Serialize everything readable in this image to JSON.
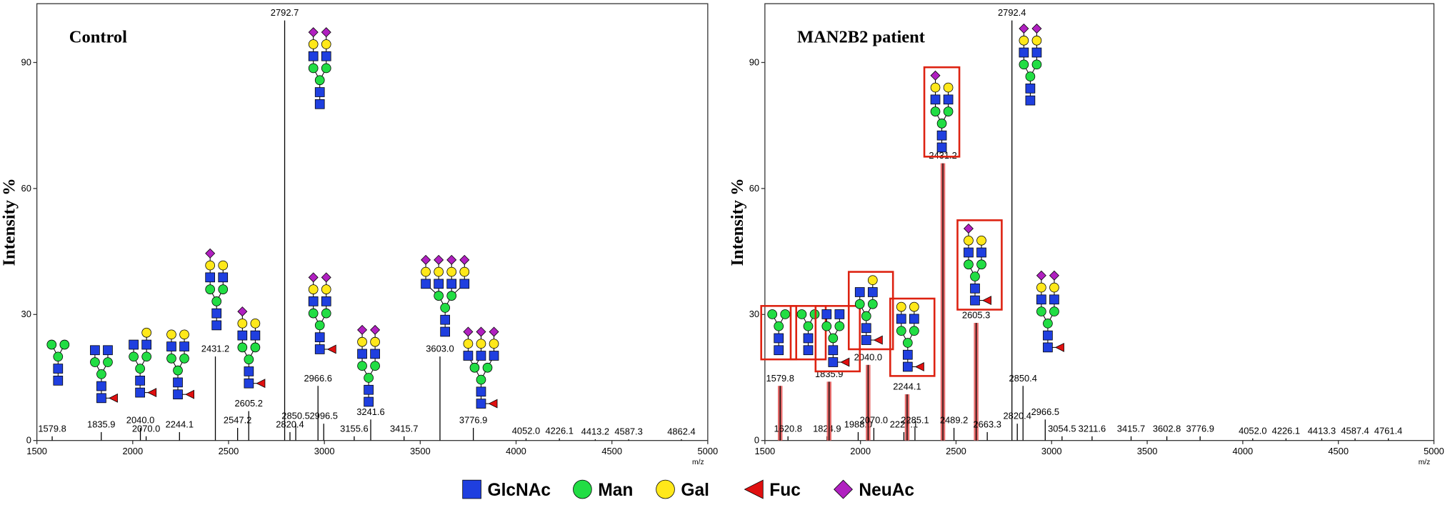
{
  "chart_data": [
    {
      "type": "stem",
      "title": "Control",
      "y_label": "Intensity %",
      "x_label": "m/z",
      "xlim": [
        1500,
        5000
      ],
      "ylim": [
        0,
        104
      ],
      "xticks": [
        1500,
        2000,
        2500,
        3000,
        3500,
        4000,
        4500,
        5000
      ],
      "yticks": [
        0,
        30,
        60,
        90
      ],
      "color": "#000000",
      "x": [
        1579.8,
        1835.9,
        2040.0,
        2070.0,
        2244.1,
        2431.2,
        2547.2,
        2605.2,
        2792.7,
        2820.4,
        2850.5,
        2966.6,
        2996.5,
        3155.6,
        3241.6,
        3415.7,
        3603.0,
        3776.9,
        4052.0,
        4226.1,
        4413.2,
        4587.3,
        4862.4
      ],
      "x_labels": [
        "1579.8",
        "1835.9",
        "2040.0",
        "2070.0",
        "2244.1",
        "2431.2",
        "2547.2",
        "2605.2",
        "2792.7",
        "2820.4",
        "2850.5",
        "2966.6",
        "2996.5",
        "3155.6",
        "3241.6",
        "3415.7",
        "3603.0",
        "3776.9",
        "4052.0",
        "4226.1",
        "4413.2",
        "4587.3",
        "4862.4"
      ],
      "values": [
        1,
        2,
        3,
        1,
        2,
        20,
        3,
        7,
        100,
        2,
        4,
        13,
        4,
        1,
        5,
        1,
        20,
        3,
        0.5,
        0.5,
        0.3,
        0.3,
        0.3
      ]
    },
    {
      "type": "stem",
      "title": "MAN2B2 patient",
      "y_label": "Intensity %",
      "x_label": "m/z",
      "xlim": [
        1500,
        5000
      ],
      "ylim": [
        0,
        104
      ],
      "xticks": [
        1500,
        2000,
        2500,
        3000,
        3500,
        4000,
        4500,
        5000
      ],
      "yticks": [
        0,
        30,
        60,
        90
      ],
      "x": [
        1579.8,
        1620.8,
        1824.9,
        1835.9,
        1988.0,
        2040.0,
        2070.0,
        2227.1,
        2244.1,
        2285.1,
        2431.2,
        2489.2,
        2605.3,
        2663.3,
        2792.4,
        2820.4,
        2850.4,
        2966.5,
        3054.5,
        3211.6,
        3415.7,
        3602.8,
        3776.9,
        4052.0,
        4226.1,
        4413.3,
        4587.4,
        4761.4
      ],
      "x_labels": [
        "1579.8",
        "1620.8",
        "1824.9",
        "1835.9",
        "1988.0",
        "2040.0",
        "2070.0",
        "2227.1",
        "2244.1",
        "2285.1",
        "2431.2",
        "2489.2",
        "2605.3",
        "2663.3",
        "2792.4",
        "2820.4",
        "2850.4",
        "2966.5",
        "3054.5",
        "3211.6",
        "3415.7",
        "3602.8",
        "3776.9",
        "4052.0",
        "4226.1",
        "4413.3",
        "4587.4",
        "4761.4"
      ],
      "values": [
        13,
        1,
        1,
        14,
        2,
        18,
        3,
        2,
        11,
        3,
        66,
        3,
        28,
        2,
        100,
        4,
        13,
        5,
        1,
        1,
        1,
        1,
        1,
        0.5,
        0.5,
        0.5,
        0.5,
        0.5
      ],
      "colors": [
        "#e05050",
        "#000000",
        "#000000",
        "#e05050",
        "#000000",
        "#e05050",
        "#000000",
        "#000000",
        "#e05050",
        "#000000",
        "#e05050",
        "#000000",
        "#e05050",
        "#000000",
        "#000000",
        "#000000",
        "#000000",
        "#000000",
        "#000000",
        "#000000",
        "#000000",
        "#000000",
        "#000000",
        "#000000",
        "#000000",
        "#000000",
        "#000000",
        "#000000"
      ]
    }
  ],
  "legend": [
    {
      "name": "GlcNAc",
      "color": "#1f3fdf"
    },
    {
      "name": "Man",
      "color": "#22dd44"
    },
    {
      "name": "Gal",
      "color": "#ffe81a"
    },
    {
      "name": "Fuc",
      "color": "#e01010"
    },
    {
      "name": "NeuAc",
      "color": "#b020c0"
    }
  ]
}
